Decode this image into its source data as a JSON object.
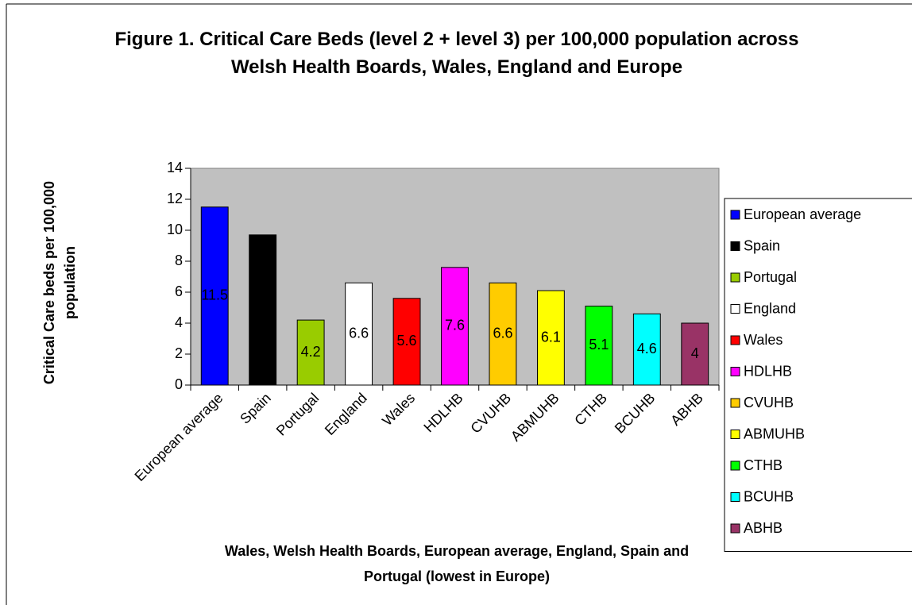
{
  "chart_data": {
    "type": "bar",
    "title": "Figure 1. Critical Care Beds (level 2 + level 3) per 100,000 population across Welsh Health Boards, Wales, England and Europe",
    "x_label": "Wales, Welsh Health Boards, European average, England, Spain and Portugal (lowest in Europe)",
    "y_label": "Critical Care beds per 100,000 population",
    "categories": [
      "European average",
      "Spain",
      "Portugal",
      "England",
      "Wales",
      "HDLHB",
      "CVUHB",
      "ABMUHB",
      "CTHB",
      "BCUHB",
      "ABHB"
    ],
    "values": [
      11.5,
      9.7,
      4.2,
      6.6,
      5.6,
      7.6,
      6.6,
      6.1,
      5.1,
      4.6,
      4
    ],
    "colors": [
      "#0000ff",
      "#000000",
      "#99cc00",
      "#ffffff",
      "#ff0000",
      "#ff00ff",
      "#ffcc00",
      "#ffff00",
      "#00ff00",
      "#00ffff",
      "#993366"
    ],
    "ylim": [
      0,
      14
    ],
    "yticks": [
      0,
      2,
      4,
      6,
      8,
      10,
      12,
      14
    ],
    "plot_background": "#c0c0c0",
    "legend": "right"
  }
}
